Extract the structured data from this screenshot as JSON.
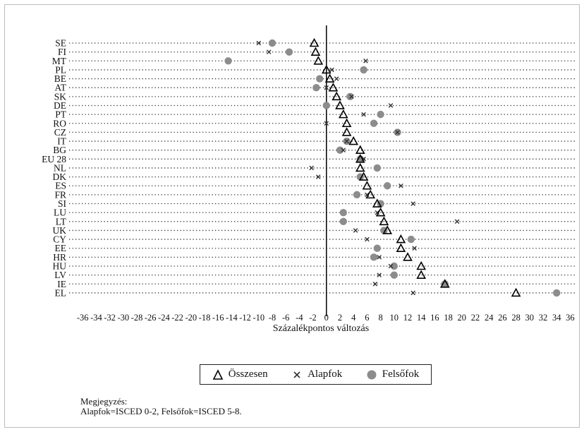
{
  "chart_data": {
    "type": "scatter",
    "xlabel": "Százalékpontos változás",
    "xlim": [
      -38,
      37
    ],
    "xticks": [
      -36,
      -34,
      -32,
      -30,
      -28,
      -26,
      -24,
      -22,
      -20,
      -18,
      -16,
      -14,
      -12,
      -10,
      -8,
      -6,
      -4,
      -2,
      0,
      2,
      4,
      6,
      8,
      10,
      12,
      14,
      16,
      18,
      20,
      22,
      24,
      26,
      28,
      30,
      32,
      34,
      36
    ],
    "categories": [
      "SE",
      "FI",
      "MT",
      "PL",
      "BE",
      "AT",
      "SK",
      "DE",
      "PT",
      "RO",
      "CZ",
      "IT",
      "BG",
      "EU 28",
      "NL",
      "DK",
      "ES",
      "FR",
      "SI",
      "LU",
      "LT",
      "UK",
      "CY",
      "EE",
      "HR",
      "HU",
      "LV",
      "IE",
      "EL"
    ],
    "series": [
      {
        "name": "Összesen",
        "marker": "triangle",
        "color": "#000000",
        "values": [
          -1.8,
          -1.6,
          -1.2,
          0.0,
          0.5,
          1.0,
          1.5,
          2.0,
          2.5,
          3.0,
          3.0,
          4.0,
          5.0,
          5.0,
          5.0,
          5.5,
          6.0,
          6.5,
          7.5,
          8.0,
          8.5,
          9.0,
          11.0,
          11.0,
          12.0,
          14.0,
          14.0,
          17.5,
          28.0
        ]
      },
      {
        "name": "Alapfok",
        "marker": "x",
        "color": "#333333",
        "values": [
          -10.0,
          -8.5,
          5.8,
          0.8,
          1.5,
          0.0,
          3.7,
          9.5,
          5.5,
          0.0,
          10.5,
          3.0,
          2.5,
          5.5,
          -2.2,
          -1.2,
          11.0,
          6.0,
          12.8,
          7.5,
          19.3,
          4.3,
          6.0,
          13.0,
          7.8,
          9.5,
          7.8,
          7.2,
          12.8
        ]
      },
      {
        "name": "Felsőfok",
        "marker": "circle",
        "color": "#8c8c8c",
        "values": [
          -8.0,
          -5.5,
          -14.5,
          5.5,
          -1.0,
          -1.5,
          3.5,
          0.0,
          8.0,
          7.0,
          10.5,
          3.0,
          2.0,
          5.0,
          7.5,
          5.0,
          9.0,
          4.5,
          8.0,
          2.5,
          2.5,
          8.5,
          12.5,
          7.5,
          7.0,
          10.0,
          10.0,
          17.5,
          34.0
        ]
      }
    ],
    "legend_position": "bottom",
    "grid": "horizontal dotted"
  },
  "legend": {
    "items": [
      "Összesen",
      "Alapfok",
      "Felsőfok"
    ]
  },
  "note": {
    "line1": "Megjegyzés:",
    "line2": "Alapfok=ISCED 0-2, Felsőfok=ISCED 5-8."
  }
}
